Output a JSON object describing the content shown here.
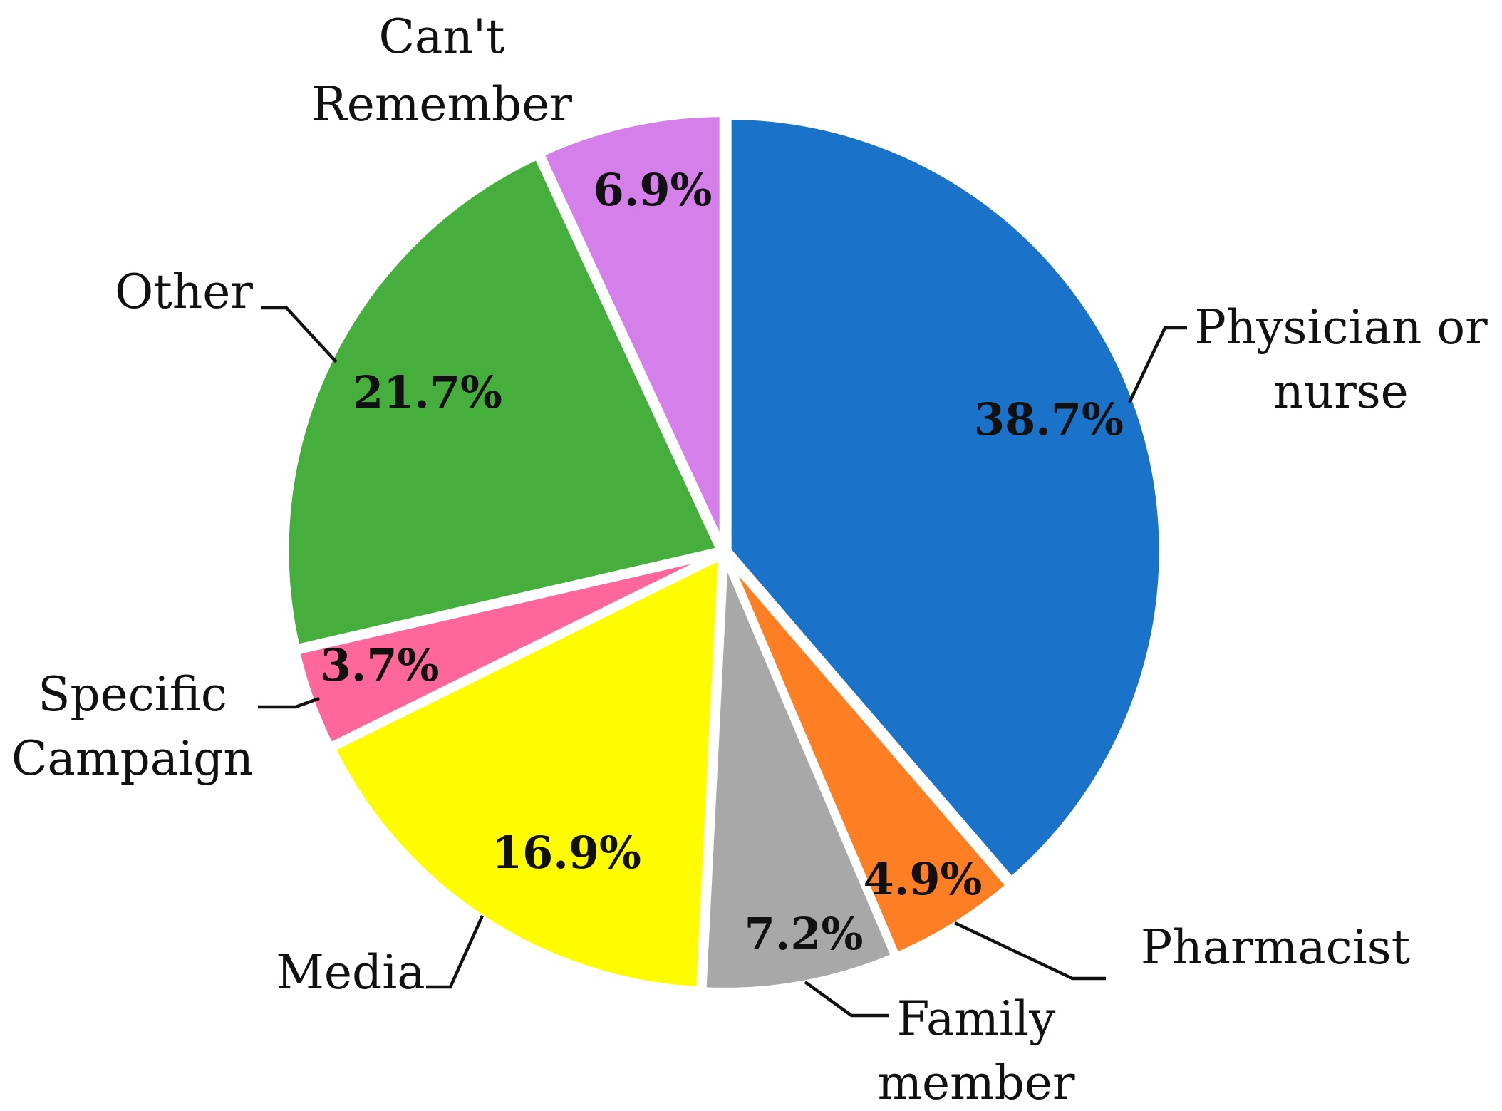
{
  "chart_data": {
    "type": "pie",
    "slices": [
      {
        "label": [
          "Physician or",
          "nurse"
        ],
        "value": 38.7,
        "value_label": "38.7%",
        "color": "#1a73c8"
      },
      {
        "label": [
          "Pharmacist"
        ],
        "value": 4.9,
        "value_label": "4.9%",
        "color": "#fd7e23"
      },
      {
        "label": [
          "Family",
          "member"
        ],
        "value": 7.2,
        "value_label": "7.2%",
        "color": "#a8a8a8"
      },
      {
        "label": [
          "Media"
        ],
        "value": 16.9,
        "value_label": "16.9%",
        "color": "#fffb00"
      },
      {
        "label": [
          "Specific",
          "Campaign"
        ],
        "value": 3.7,
        "value_label": "3.7%",
        "color": "#ff6699"
      },
      {
        "label": [
          "Other"
        ],
        "value": 21.7,
        "value_label": "21.7%",
        "color": "#45ae3c"
      },
      {
        "label": [
          "Can't",
          "Remember"
        ],
        "value": 6.9,
        "value_label": "6.9%",
        "color": "#d580ea"
      }
    ],
    "start_angle_deg": 0,
    "direction": "clockwise",
    "legend": "none"
  }
}
